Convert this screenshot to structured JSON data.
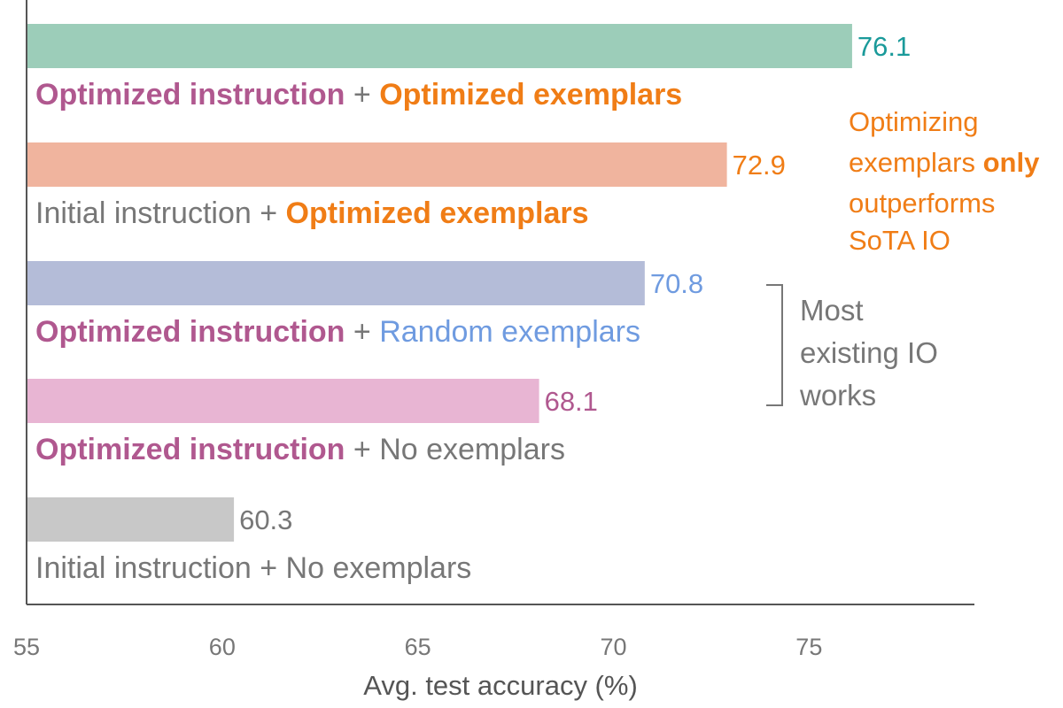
{
  "chart_data": {
    "type": "bar",
    "orientation": "horizontal",
    "xlabel": "Avg. test accuracy (%)",
    "xlim": [
      55,
      79
    ],
    "xticks": [
      55,
      60,
      65,
      70,
      75
    ],
    "grid": false,
    "series": [
      {
        "value": 76.1,
        "value_label": "76.1",
        "bar_color": "#9ccdb9",
        "value_color": "#1a9a9a",
        "label_parts": [
          {
            "text": "Optimized instruction",
            "color": "#b0588f",
            "bold": true
          },
          {
            "text": " + ",
            "color": "#777777",
            "bold": false
          },
          {
            "text": "Optimized exemplars",
            "color": "#f07d16",
            "bold": true
          }
        ]
      },
      {
        "value": 72.9,
        "value_label": "72.9",
        "bar_color": "#f0b49e",
        "value_color": "#f07d16",
        "label_parts": [
          {
            "text": "Initial instruction",
            "color": "#777777",
            "bold": false
          },
          {
            "text": " + ",
            "color": "#777777",
            "bold": false
          },
          {
            "text": "Optimized exemplars",
            "color": "#f07d16",
            "bold": true
          }
        ]
      },
      {
        "value": 70.8,
        "value_label": "70.8",
        "bar_color": "#b4bcd8",
        "value_color": "#6f9be0",
        "label_parts": [
          {
            "text": "Optimized instruction",
            "color": "#b0588f",
            "bold": true
          },
          {
            "text": " + ",
            "color": "#777777",
            "bold": false
          },
          {
            "text": "Random exemplars",
            "color": "#6f9be0",
            "bold": false
          }
        ]
      },
      {
        "value": 68.1,
        "value_label": "68.1",
        "bar_color": "#e8b5d3",
        "value_color": "#b0588f",
        "label_parts": [
          {
            "text": "Optimized instruction",
            "color": "#b0588f",
            "bold": true
          },
          {
            "text": " + ",
            "color": "#777777",
            "bold": false
          },
          {
            "text": "No exemplars",
            "color": "#777777",
            "bold": false
          }
        ]
      },
      {
        "value": 60.3,
        "value_label": "60.3",
        "bar_color": "#c8c8c8",
        "value_color": "#777777",
        "label_parts": [
          {
            "text": "Initial instruction",
            "color": "#777777",
            "bold": false
          },
          {
            "text": " + ",
            "color": "#777777",
            "bold": false
          },
          {
            "text": "No exemplars",
            "color": "#777777",
            "bold": false
          }
        ]
      }
    ],
    "annotations": [
      {
        "lines": [
          [
            {
              "text": "Optimizing",
              "bold": false
            }
          ],
          [
            {
              "text": "exemplars ",
              "bold": false
            },
            {
              "text": "only",
              "bold": true
            }
          ],
          [
            {
              "text": "outperforms",
              "bold": false
            }
          ],
          [
            {
              "text": "SoTA IO",
              "bold": false
            }
          ]
        ],
        "color": "#f07d16"
      },
      {
        "lines": [
          [
            {
              "text": "Most",
              "bold": false
            }
          ],
          [
            {
              "text": "existing IO",
              "bold": false
            }
          ],
          [
            {
              "text": "works",
              "bold": false
            }
          ]
        ],
        "color": "#777777",
        "bracket_color": "#777777"
      }
    ],
    "axis_color": "#555555",
    "tick_color": "#777777"
  }
}
